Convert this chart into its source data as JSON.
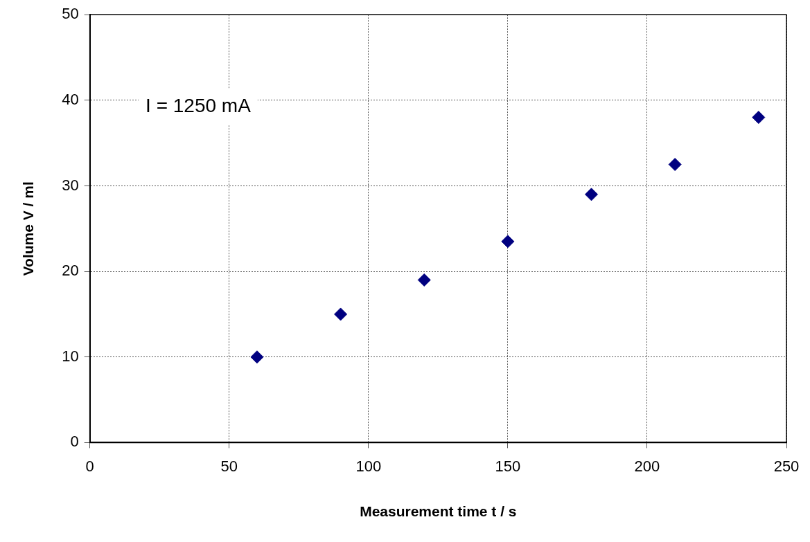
{
  "chart_data": {
    "type": "scatter",
    "xlabel": "Measurement time t / s",
    "ylabel": "Volume V / ml",
    "annotations": [
      "I = 1250 mA"
    ],
    "x": [
      60,
      90,
      120,
      150,
      180,
      210,
      240
    ],
    "series": [
      {
        "color": "#000080",
        "values": [
          10,
          15,
          19,
          23.5,
          29,
          32.5,
          38
        ]
      }
    ],
    "xlim": [
      0,
      250
    ],
    "xticks": [
      0,
      50,
      100,
      150,
      200,
      250
    ],
    "ylim": [
      0,
      50
    ],
    "yticks": [
      0,
      10,
      20,
      30,
      40,
      50
    ],
    "grid": true,
    "legend": false,
    "marker": "diamond"
  }
}
